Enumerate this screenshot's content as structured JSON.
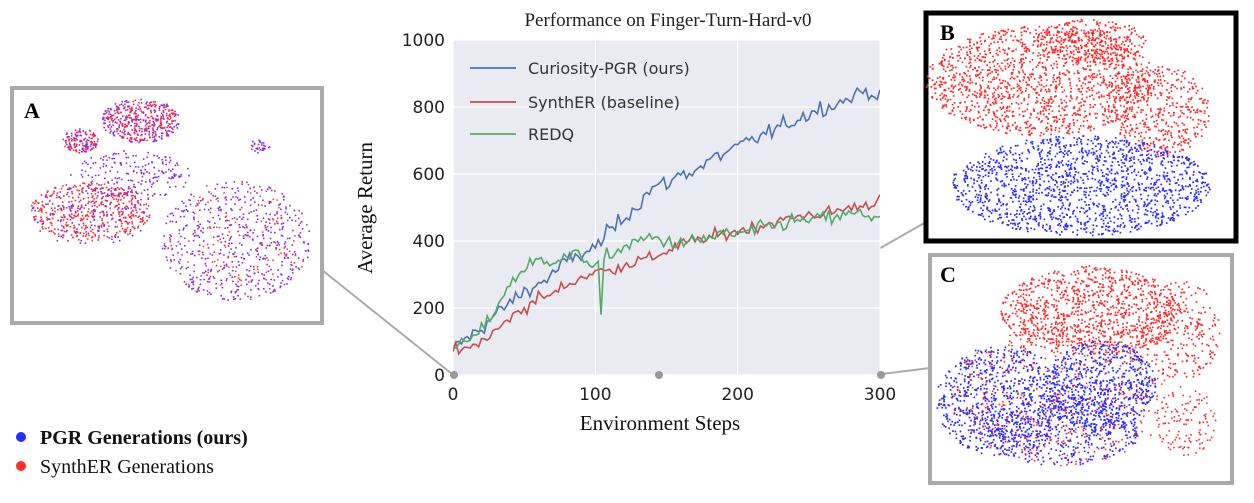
{
  "panels": {
    "A": {
      "letter": "A"
    },
    "B": {
      "letter": "B"
    },
    "C": {
      "letter": "C"
    }
  },
  "point_legend": [
    {
      "label": "PGR Generations (ours)",
      "color": "#2b2bff",
      "bold": true
    },
    {
      "label": "SynthER Generations",
      "color": "#ff2b2b",
      "bold": false
    }
  ],
  "chart_data": {
    "type": "line",
    "title": "Performance on Finger-Turn-Hard-v0",
    "xlabel": "Environment Steps",
    "ylabel": "Average Return",
    "xlim": [
      0,
      300
    ],
    "ylim": [
      0,
      1000
    ],
    "xticks": [
      0,
      100,
      200,
      300
    ],
    "yticks": [
      0,
      200,
      400,
      600,
      800,
      1000
    ],
    "grid": true,
    "legend_position": "top-left",
    "series": [
      {
        "name": "Curiosity-PGR (ours)",
        "color": "#4c72b0",
        "x": [
          0,
          10,
          20,
          30,
          40,
          50,
          60,
          70,
          80,
          90,
          100,
          110,
          120,
          130,
          140,
          150,
          160,
          170,
          180,
          190,
          200,
          210,
          220,
          230,
          240,
          250,
          260,
          270,
          280,
          290,
          300
        ],
        "y": [
          75,
          110,
          140,
          180,
          215,
          250,
          270,
          300,
          340,
          360,
          380,
          430,
          470,
          510,
          560,
          570,
          600,
          610,
          640,
          660,
          680,
          700,
          720,
          740,
          760,
          780,
          800,
          810,
          830,
          850,
          835
        ]
      },
      {
        "name": "SynthER (baseline)",
        "color": "#c44e52",
        "x": [
          0,
          10,
          20,
          30,
          40,
          50,
          60,
          70,
          80,
          90,
          100,
          110,
          120,
          130,
          140,
          150,
          160,
          170,
          180,
          190,
          200,
          210,
          220,
          230,
          240,
          250,
          260,
          270,
          280,
          290,
          300
        ],
        "y": [
          70,
          75,
          100,
          130,
          170,
          200,
          230,
          240,
          270,
          290,
          310,
          310,
          330,
          340,
          350,
          370,
          390,
          400,
          410,
          420,
          430,
          440,
          450,
          460,
          470,
          480,
          480,
          490,
          500,
          510,
          520
        ]
      },
      {
        "name": "REDQ",
        "color": "#55a868",
        "x": [
          0,
          10,
          20,
          30,
          40,
          50,
          60,
          70,
          80,
          90,
          100,
          110,
          120,
          130,
          140,
          150,
          160,
          170,
          180,
          190,
          200,
          210,
          220,
          230,
          240,
          250,
          260,
          270,
          280,
          290,
          300
        ],
        "y": [
          80,
          100,
          130,
          200,
          270,
          320,
          340,
          345,
          350,
          360,
          320,
          360,
          380,
          400,
          410,
          400,
          390,
          400,
          410,
          420,
          420,
          430,
          440,
          450,
          460,
          460,
          470,
          470,
          480,
          480,
          470
        ]
      }
    ]
  }
}
